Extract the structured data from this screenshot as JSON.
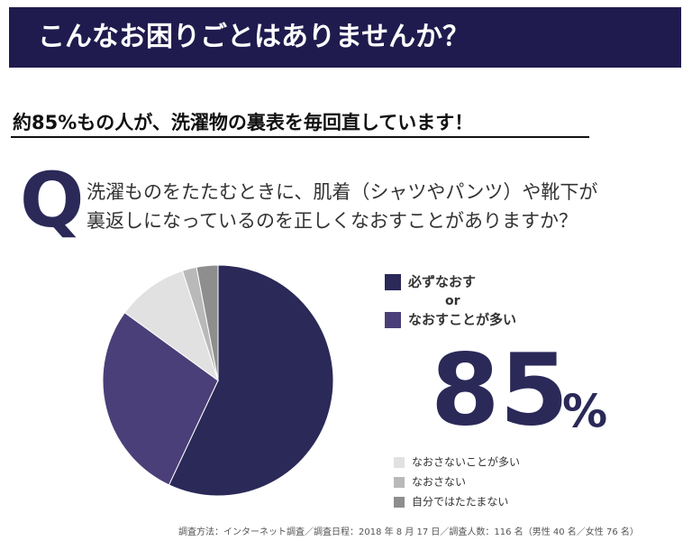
{
  "header": {
    "title": "こんなお困りごとはありませんか？"
  },
  "subtitle": "約85%もの人が、洗濯物の裏表を毎回直しています！",
  "chart_data": {
    "type": "pie",
    "q_label": "Q",
    "question": [
      "洗濯ものをたたむときに、肌着（シャツやパンツ）や靴下が",
      "裏返しになっているのを正しくなおすことがありますか？"
    ],
    "categories": [
      "必ずなおす",
      "なおすことが多い",
      "なおさないことが多い",
      "なおさない",
      "自分ではたたまない"
    ],
    "values": [
      57,
      28,
      10,
      2,
      3
    ],
    "colors": [
      "#2a2958",
      "#4a3f78",
      "#e1e1e1",
      "#b9b9b9",
      "#8e8e8e"
    ],
    "connector": "or",
    "highlight": {
      "value": 85,
      "unit": "%"
    },
    "note": "調査方法：インターネット調査／調査日程：2018 年 8 月 17 日／調査人数：116 名（男性 40 名／女性 76 名）"
  }
}
